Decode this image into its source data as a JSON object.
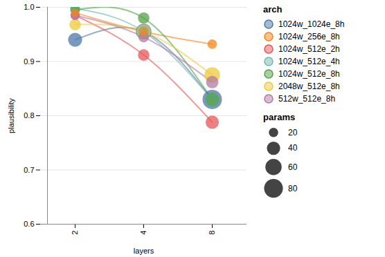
{
  "chart_data": {
    "type": "scatter",
    "x_label": "layers",
    "y_label": "plausibility",
    "categories": [
      "2",
      "4",
      "8"
    ],
    "ylim": [
      0.6,
      1.0
    ],
    "yticks": [
      0.6,
      0.7,
      0.8,
      0.9,
      {
        "value": 1.0,
        "label": "1.0"
      }
    ],
    "grid": true,
    "legend_title": "arch",
    "series": [
      {
        "name": "1024w_1024e_8h",
        "color": "#4c78a8",
        "values": [
          0.94,
          0.955,
          0.83
        ],
        "sizes": [
          45,
          55,
          85
        ]
      },
      {
        "name": "1024w_256e_8h",
        "color": "#f58518",
        "values": [
          0.99,
          0.955,
          0.932
        ],
        "sizes": [
          14,
          16,
          20
        ]
      },
      {
        "name": "1024w_512e_2h",
        "color": "#e45756",
        "values": [
          0.985,
          0.912,
          0.788
        ],
        "sizes": [
          20,
          30,
          40
        ]
      },
      {
        "name": "1024w_512e_4h",
        "color": "#72b7b2",
        "values": [
          0.998,
          0.955,
          0.83
        ],
        "sizes": [
          22,
          30,
          45
        ]
      },
      {
        "name": "1024w_512e_8h",
        "color": "#54a24b",
        "values": [
          0.995,
          0.98,
          0.83
        ],
        "sizes": [
          22,
          30,
          45
        ]
      },
      {
        "name": "2048w_512e_8h",
        "color": "#eeca3b",
        "values": [
          0.968,
          0.955,
          0.875
        ],
        "sizes": [
          30,
          45,
          55
        ]
      },
      {
        "name": "512w_512e_8h",
        "color": "#b279a2",
        "values": [
          0.985,
          0.945,
          0.862
        ],
        "sizes": [
          18,
          25,
          35
        ]
      }
    ],
    "size_legend": {
      "title": "params",
      "values": [
        20,
        40,
        60,
        80
      ]
    }
  }
}
